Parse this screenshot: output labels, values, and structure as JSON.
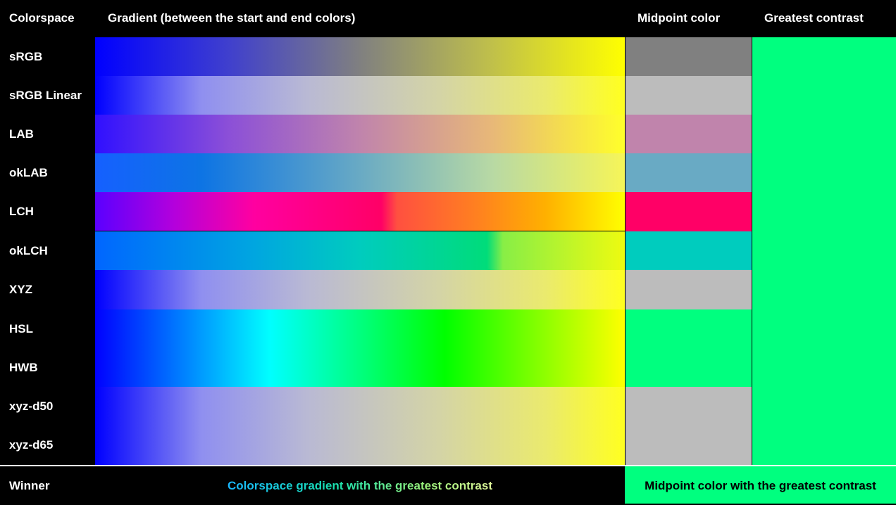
{
  "headers": {
    "colorspace": "Colorspace",
    "gradient": "Gradient (between the start and end colors)",
    "midpoint": "Midpoint color",
    "contrast": "Greatest contrast"
  },
  "rows": [
    {
      "label": "sRGB",
      "midpoint_color": "#808080"
    },
    {
      "label": "sRGB Linear",
      "midpoint_color": "#bcbcbc"
    },
    {
      "label": "LAB",
      "midpoint_color": "#c084ac"
    },
    {
      "label": "okLAB",
      "midpoint_color": "#69aac4"
    },
    {
      "label": "LCH",
      "midpoint_color": "#ff0066"
    },
    {
      "label": "okLCH",
      "midpoint_color": "#00ccbe"
    },
    {
      "label": "XYZ",
      "midpoint_color": "#bcbcbc"
    },
    {
      "label": "HSL",
      "midpoint_color": "#00ff7f"
    },
    {
      "label": "HWB",
      "midpoint_color": "#00ff7f"
    },
    {
      "label": "xyz-d50",
      "midpoint_color": "#bcbcbc"
    },
    {
      "label": "xyz-d65",
      "midpoint_color": "#bcbcbc"
    }
  ],
  "start_color": "#0000ff",
  "end_color": "#ffff00",
  "contrast_color": "#00ff7f",
  "footer": {
    "winner_label": "Winner",
    "gradient_winner": "Colorspace gradient with the greatest contrast",
    "midpoint_winner": "Midpoint color with the greatest contrast"
  }
}
